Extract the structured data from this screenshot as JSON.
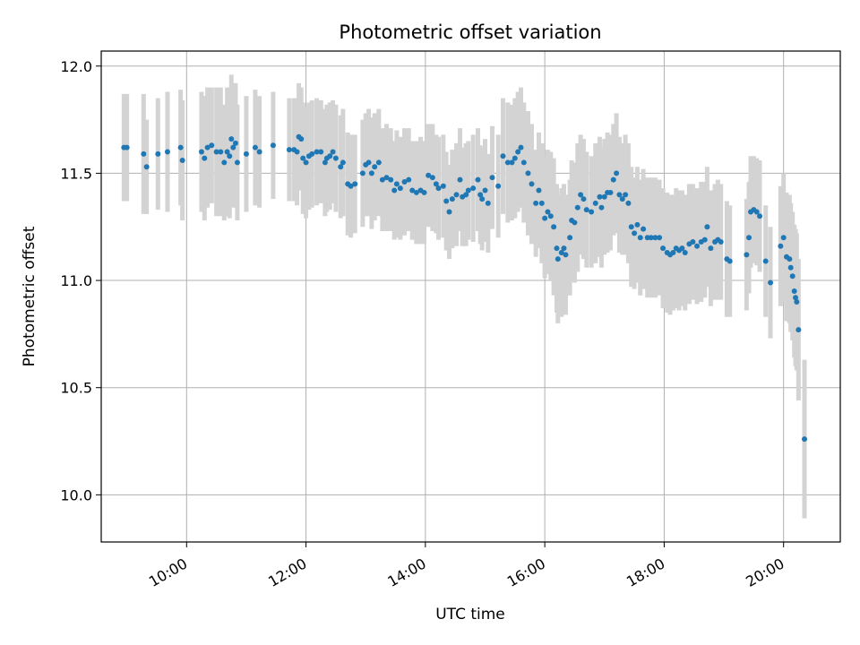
{
  "chart_data": {
    "type": "scatter",
    "title": "Photometric offset variation",
    "xlabel": "UTC time",
    "ylabel": "Photometric offset",
    "x_unit": "hours UTC",
    "xlim": [
      8.57,
      20.95
    ],
    "ylim": [
      9.78,
      12.07
    ],
    "x_ticks": [
      {
        "value": 10,
        "label": "10:00"
      },
      {
        "value": 12,
        "label": "12:00"
      },
      {
        "value": 14,
        "label": "14:00"
      },
      {
        "value": 16,
        "label": "16:00"
      },
      {
        "value": 18,
        "label": "18:00"
      },
      {
        "value": 20,
        "label": "20:00"
      }
    ],
    "y_ticks": [
      {
        "value": 10.0,
        "label": "10.0"
      },
      {
        "value": 10.5,
        "label": "10.5"
      },
      {
        "value": 11.0,
        "label": "11.0"
      },
      {
        "value": 11.5,
        "label": "11.5"
      },
      {
        "value": 12.0,
        "label": "12.0"
      }
    ],
    "grid": true,
    "colors": {
      "point": "#1f77b4",
      "errorbar": "#d3d3d3",
      "grid": "#b0b0b0"
    },
    "points": [
      [
        8.95,
        11.62,
        0.25
      ],
      [
        9.0,
        11.62,
        0.25
      ],
      [
        9.28,
        11.59,
        0.28
      ],
      [
        9.33,
        11.53,
        0.22
      ],
      [
        9.52,
        11.59,
        0.26
      ],
      [
        9.68,
        11.6,
        0.28
      ],
      [
        9.9,
        11.62,
        0.27
      ],
      [
        9.93,
        11.56,
        0.28
      ],
      [
        10.25,
        11.6,
        0.28
      ],
      [
        10.3,
        11.57,
        0.29
      ],
      [
        10.35,
        11.62,
        0.28
      ],
      [
        10.42,
        11.63,
        0.27
      ],
      [
        10.5,
        11.6,
        0.3
      ],
      [
        10.57,
        11.6,
        0.3
      ],
      [
        10.63,
        11.55,
        0.27
      ],
      [
        10.68,
        11.6,
        0.3
      ],
      [
        10.72,
        11.58,
        0.29
      ],
      [
        10.75,
        11.66,
        0.3
      ],
      [
        10.78,
        11.62,
        0.28
      ],
      [
        10.82,
        11.64,
        0.28
      ],
      [
        10.85,
        11.55,
        0.27
      ],
      [
        11.0,
        11.59,
        0.27
      ],
      [
        11.15,
        11.62,
        0.27
      ],
      [
        11.22,
        11.6,
        0.26
      ],
      [
        11.45,
        11.63,
        0.25
      ],
      [
        11.72,
        11.61,
        0.24
      ],
      [
        11.8,
        11.61,
        0.24
      ],
      [
        11.85,
        11.6,
        0.25
      ],
      [
        11.88,
        11.67,
        0.25
      ],
      [
        11.92,
        11.66,
        0.24
      ],
      [
        11.95,
        11.57,
        0.26
      ],
      [
        12.0,
        11.55,
        0.26
      ],
      [
        12.05,
        11.58,
        0.25
      ],
      [
        12.1,
        11.59,
        0.25
      ],
      [
        12.18,
        11.6,
        0.25
      ],
      [
        12.25,
        11.6,
        0.24
      ],
      [
        12.32,
        11.55,
        0.25
      ],
      [
        12.35,
        11.57,
        0.25
      ],
      [
        12.4,
        11.58,
        0.25
      ],
      [
        12.45,
        11.6,
        0.24
      ],
      [
        12.5,
        11.57,
        0.25
      ],
      [
        12.58,
        11.53,
        0.24
      ],
      [
        12.62,
        11.55,
        0.25
      ],
      [
        12.7,
        11.45,
        0.24
      ],
      [
        12.75,
        11.44,
        0.24
      ],
      [
        12.82,
        11.45,
        0.23
      ],
      [
        12.95,
        11.5,
        0.25
      ],
      [
        13.0,
        11.54,
        0.24
      ],
      [
        13.05,
        11.55,
        0.25
      ],
      [
        13.1,
        11.5,
        0.26
      ],
      [
        13.15,
        11.53,
        0.25
      ],
      [
        13.22,
        11.55,
        0.25
      ],
      [
        13.28,
        11.47,
        0.24
      ],
      [
        13.35,
        11.48,
        0.25
      ],
      [
        13.42,
        11.47,
        0.24
      ],
      [
        13.48,
        11.42,
        0.23
      ],
      [
        13.52,
        11.45,
        0.25
      ],
      [
        13.58,
        11.43,
        0.24
      ],
      [
        13.65,
        11.46,
        0.25
      ],
      [
        13.72,
        11.47,
        0.24
      ],
      [
        13.78,
        11.42,
        0.23
      ],
      [
        13.85,
        11.41,
        0.24
      ],
      [
        13.92,
        11.42,
        0.25
      ],
      [
        13.98,
        11.41,
        0.24
      ],
      [
        14.05,
        11.49,
        0.24
      ],
      [
        14.12,
        11.48,
        0.25
      ],
      [
        14.18,
        11.45,
        0.23
      ],
      [
        14.22,
        11.43,
        0.24
      ],
      [
        14.3,
        11.44,
        0.24
      ],
      [
        14.35,
        11.37,
        0.23
      ],
      [
        14.4,
        11.32,
        0.22
      ],
      [
        14.45,
        11.38,
        0.23
      ],
      [
        14.52,
        11.4,
        0.24
      ],
      [
        14.58,
        11.47,
        0.24
      ],
      [
        14.62,
        11.39,
        0.23
      ],
      [
        14.68,
        11.4,
        0.24
      ],
      [
        14.72,
        11.42,
        0.23
      ],
      [
        14.8,
        11.43,
        0.25
      ],
      [
        14.88,
        11.47,
        0.24
      ],
      [
        14.92,
        11.4,
        0.23
      ],
      [
        14.95,
        11.38,
        0.24
      ],
      [
        15.0,
        11.42,
        0.24
      ],
      [
        15.05,
        11.36,
        0.23
      ],
      [
        15.12,
        11.48,
        0.24
      ],
      [
        15.22,
        11.44,
        0.24
      ],
      [
        15.3,
        11.58,
        0.27
      ],
      [
        15.38,
        11.55,
        0.28
      ],
      [
        15.45,
        11.55,
        0.27
      ],
      [
        15.5,
        11.57,
        0.28
      ],
      [
        15.55,
        11.6,
        0.28
      ],
      [
        15.6,
        11.62,
        0.28
      ],
      [
        15.65,
        11.55,
        0.28
      ],
      [
        15.72,
        11.5,
        0.29
      ],
      [
        15.78,
        11.45,
        0.28
      ],
      [
        15.85,
        11.36,
        0.25
      ],
      [
        15.9,
        11.42,
        0.27
      ],
      [
        15.95,
        11.36,
        0.28
      ],
      [
        16.0,
        11.29,
        0.28
      ],
      [
        16.05,
        11.32,
        0.29
      ],
      [
        16.1,
        11.3,
        0.3
      ],
      [
        16.15,
        11.25,
        0.32
      ],
      [
        16.2,
        11.15,
        0.3
      ],
      [
        16.22,
        11.1,
        0.3
      ],
      [
        16.28,
        11.13,
        0.3
      ],
      [
        16.32,
        11.15,
        0.3
      ],
      [
        16.35,
        11.12,
        0.28
      ],
      [
        16.42,
        11.2,
        0.27
      ],
      [
        16.45,
        11.28,
        0.28
      ],
      [
        16.5,
        11.27,
        0.28
      ],
      [
        16.55,
        11.34,
        0.3
      ],
      [
        16.6,
        11.4,
        0.28
      ],
      [
        16.65,
        11.38,
        0.28
      ],
      [
        16.7,
        11.33,
        0.27
      ],
      [
        16.78,
        11.32,
        0.26
      ],
      [
        16.85,
        11.36,
        0.28
      ],
      [
        16.92,
        11.39,
        0.28
      ],
      [
        16.95,
        11.34,
        0.28
      ],
      [
        17.0,
        11.39,
        0.27
      ],
      [
        17.05,
        11.41,
        0.28
      ],
      [
        17.1,
        11.41,
        0.27
      ],
      [
        17.15,
        11.47,
        0.26
      ],
      [
        17.2,
        11.5,
        0.28
      ],
      [
        17.25,
        11.4,
        0.27
      ],
      [
        17.3,
        11.38,
        0.26
      ],
      [
        17.35,
        11.4,
        0.28
      ],
      [
        17.4,
        11.36,
        0.28
      ],
      [
        17.45,
        11.25,
        0.28
      ],
      [
        17.5,
        11.22,
        0.26
      ],
      [
        17.55,
        11.26,
        0.27
      ],
      [
        17.6,
        11.2,
        0.27
      ],
      [
        17.65,
        11.24,
        0.28
      ],
      [
        17.72,
        11.2,
        0.28
      ],
      [
        17.78,
        11.2,
        0.28
      ],
      [
        17.85,
        11.2,
        0.28
      ],
      [
        17.92,
        11.2,
        0.27
      ],
      [
        17.98,
        11.15,
        0.28
      ],
      [
        18.05,
        11.13,
        0.28
      ],
      [
        18.1,
        11.12,
        0.28
      ],
      [
        18.15,
        11.13,
        0.27
      ],
      [
        18.2,
        11.15,
        0.28
      ],
      [
        18.25,
        11.14,
        0.28
      ],
      [
        18.3,
        11.15,
        0.27
      ],
      [
        18.35,
        11.13,
        0.27
      ],
      [
        18.42,
        11.17,
        0.28
      ],
      [
        18.48,
        11.18,
        0.27
      ],
      [
        18.55,
        11.16,
        0.27
      ],
      [
        18.62,
        11.18,
        0.28
      ],
      [
        18.68,
        11.19,
        0.27
      ],
      [
        18.72,
        11.25,
        0.28
      ],
      [
        18.78,
        11.15,
        0.27
      ],
      [
        18.85,
        11.18,
        0.27
      ],
      [
        18.9,
        11.19,
        0.28
      ],
      [
        18.95,
        11.18,
        0.27
      ],
      [
        19.05,
        11.1,
        0.27
      ],
      [
        19.1,
        11.09,
        0.26
      ],
      [
        19.38,
        11.12,
        0.26
      ],
      [
        19.42,
        11.2,
        0.26
      ],
      [
        19.45,
        11.32,
        0.26
      ],
      [
        19.5,
        11.33,
        0.25
      ],
      [
        19.55,
        11.32,
        0.25
      ],
      [
        19.6,
        11.3,
        0.26
      ],
      [
        19.7,
        11.09,
        0.26
      ],
      [
        19.78,
        10.99,
        0.26
      ],
      [
        19.95,
        11.16,
        0.28
      ],
      [
        20.0,
        11.2,
        0.3
      ],
      [
        20.05,
        11.11,
        0.3
      ],
      [
        20.1,
        11.1,
        0.3
      ],
      [
        20.12,
        11.06,
        0.3
      ],
      [
        20.15,
        11.02,
        0.3
      ],
      [
        20.18,
        10.95,
        0.31
      ],
      [
        20.2,
        10.92,
        0.32
      ],
      [
        20.22,
        10.9,
        0.32
      ],
      [
        20.25,
        10.77,
        0.33
      ],
      [
        20.35,
        10.26,
        0.37
      ]
    ]
  }
}
